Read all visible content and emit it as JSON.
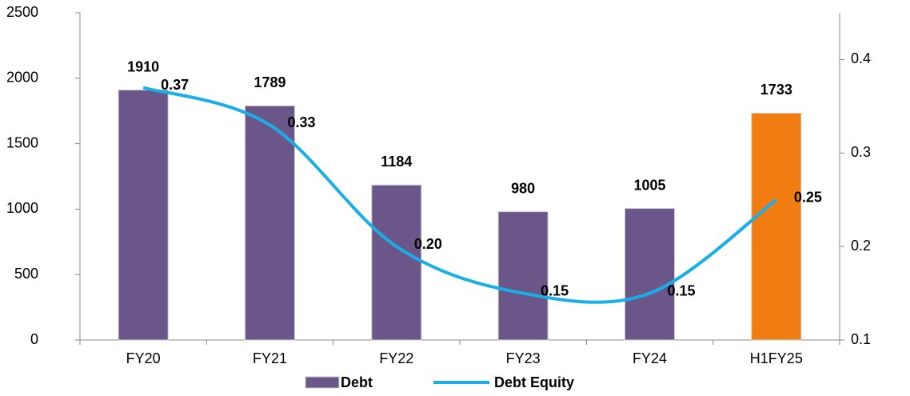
{
  "chart_data": {
    "type": "bar-line",
    "categories": [
      "FY20",
      "FY21",
      "FY22",
      "FY23",
      "FY24",
      "H1FY25"
    ],
    "series": [
      {
        "name": "Debt",
        "type": "bar",
        "color": "#6b5689",
        "point_colors": [
          "#6b5689",
          "#6b5689",
          "#6b5689",
          "#6b5689",
          "#6b5689",
          "#f07c12"
        ],
        "values": [
          1910,
          1789,
          1184,
          980,
          1005,
          1733
        ]
      },
      {
        "name": "Debt Equity",
        "type": "line",
        "axis": "y2",
        "color": "#1aaee6",
        "values": [
          0.37,
          0.33,
          0.2,
          0.15,
          0.15,
          0.25
        ],
        "value_labels": [
          "0.37",
          "0.33",
          "0.20",
          "0.15",
          "0.15",
          "0.25"
        ]
      }
    ],
    "ylim": [
      0,
      2500
    ],
    "yticks": [
      0,
      500,
      1000,
      1500,
      2000,
      2500
    ],
    "y2lim": [
      0.1,
      0.45
    ],
    "y2ticks": [
      0.1,
      0.2,
      0.3,
      0.4
    ],
    "legend": "bottom"
  }
}
